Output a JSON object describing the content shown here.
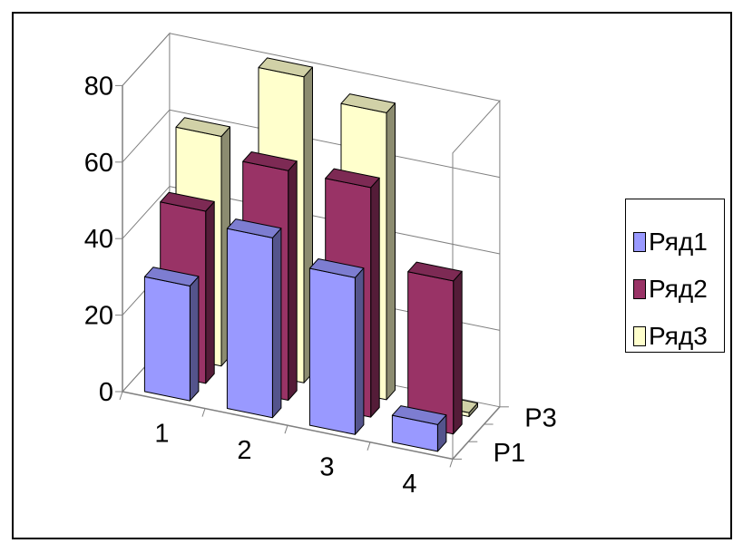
{
  "chart_data": {
    "type": "bar",
    "categories": [
      "1",
      "2",
      "3",
      "4"
    ],
    "depth_labels": [
      "Р1",
      "Р3"
    ],
    "series": [
      {
        "name": "Ряд1",
        "values": [
          30,
          47,
          41,
          7
        ],
        "color": "#9999ff"
      },
      {
        "name": "Ряд2",
        "values": [
          45,
          60,
          60,
          40
        ],
        "color": "#993366"
      },
      {
        "name": "Ряд3",
        "values": [
          60,
          80,
          75,
          1
        ],
        "color": "#ffffcc"
      }
    ],
    "y_ticks": [
      "0",
      "20",
      "40",
      "60",
      "80"
    ],
    "ylim": [
      0,
      80
    ],
    "grid": true,
    "legend_position": "right"
  }
}
